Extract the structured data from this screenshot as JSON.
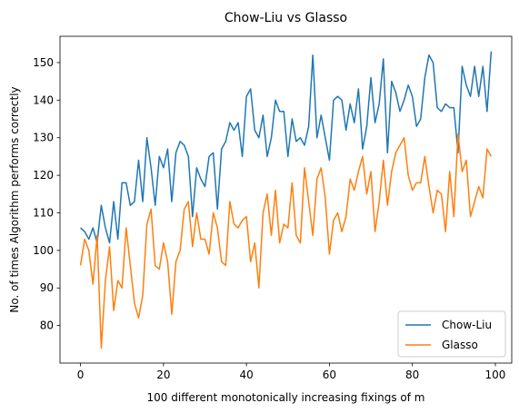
{
  "chart_data": {
    "type": "line",
    "title": "Chow-Liu vs Glasso",
    "xlabel": "100 different monotonically increasing fixings of m",
    "ylabel": "No. of times Algorithm performs correctly",
    "xlim": [
      -4.95,
      103.95
    ],
    "ylim": [
      70,
      157
    ],
    "xticks": [
      0,
      20,
      40,
      60,
      80,
      100
    ],
    "yticks": [
      80,
      90,
      100,
      110,
      120,
      130,
      140,
      150
    ],
    "grid": false,
    "legend_position": "lower-right",
    "series": [
      {
        "name": "Chow-Liu",
        "color": "#1f77b4",
        "values": [
          106,
          105,
          103,
          106,
          102,
          112,
          106,
          102,
          113,
          103,
          118,
          118,
          112,
          113,
          124,
          113,
          130,
          122,
          112,
          125,
          122,
          127,
          113,
          126,
          129,
          128,
          125,
          109,
          122,
          119,
          117,
          125,
          126,
          111,
          127,
          129,
          134,
          132,
          134,
          125,
          141,
          143,
          132,
          130,
          136,
          125,
          130,
          140,
          137,
          137,
          125,
          135,
          129,
          130,
          128,
          133,
          152,
          130,
          136,
          130,
          124,
          140,
          141,
          140,
          132,
          139,
          134,
          143,
          127,
          133,
          146,
          134,
          139,
          151,
          126,
          145,
          142,
          137,
          140,
          144,
          141,
          133,
          135,
          146,
          152,
          150,
          138,
          137,
          139,
          138,
          138,
          126,
          149,
          144,
          141,
          149,
          141,
          149,
          137,
          153
        ]
      },
      {
        "name": "Glasso",
        "color": "#ff7f0e",
        "values": [
          96,
          103,
          100,
          91,
          104,
          74,
          92,
          101,
          84,
          92,
          90,
          106,
          96,
          86,
          82,
          88,
          107,
          111,
          96,
          95,
          102,
          97,
          83,
          97,
          100,
          111,
          113,
          101,
          110,
          103,
          103,
          99,
          110,
          106,
          97,
          96,
          113,
          107,
          106,
          108,
          109,
          97,
          102,
          90,
          110,
          115,
          104,
          116,
          102,
          107,
          106,
          118,
          104,
          102,
          122,
          113,
          104,
          119,
          122,
          114,
          99,
          108,
          110,
          105,
          109,
          119,
          116,
          121,
          125,
          115,
          121,
          105,
          113,
          124,
          112,
          121,
          126,
          128,
          130,
          120,
          116,
          118,
          118,
          125,
          117,
          110,
          116,
          115,
          105,
          121,
          109,
          131,
          121,
          124,
          109,
          113,
          117,
          114,
          127,
          125
        ]
      }
    ]
  }
}
